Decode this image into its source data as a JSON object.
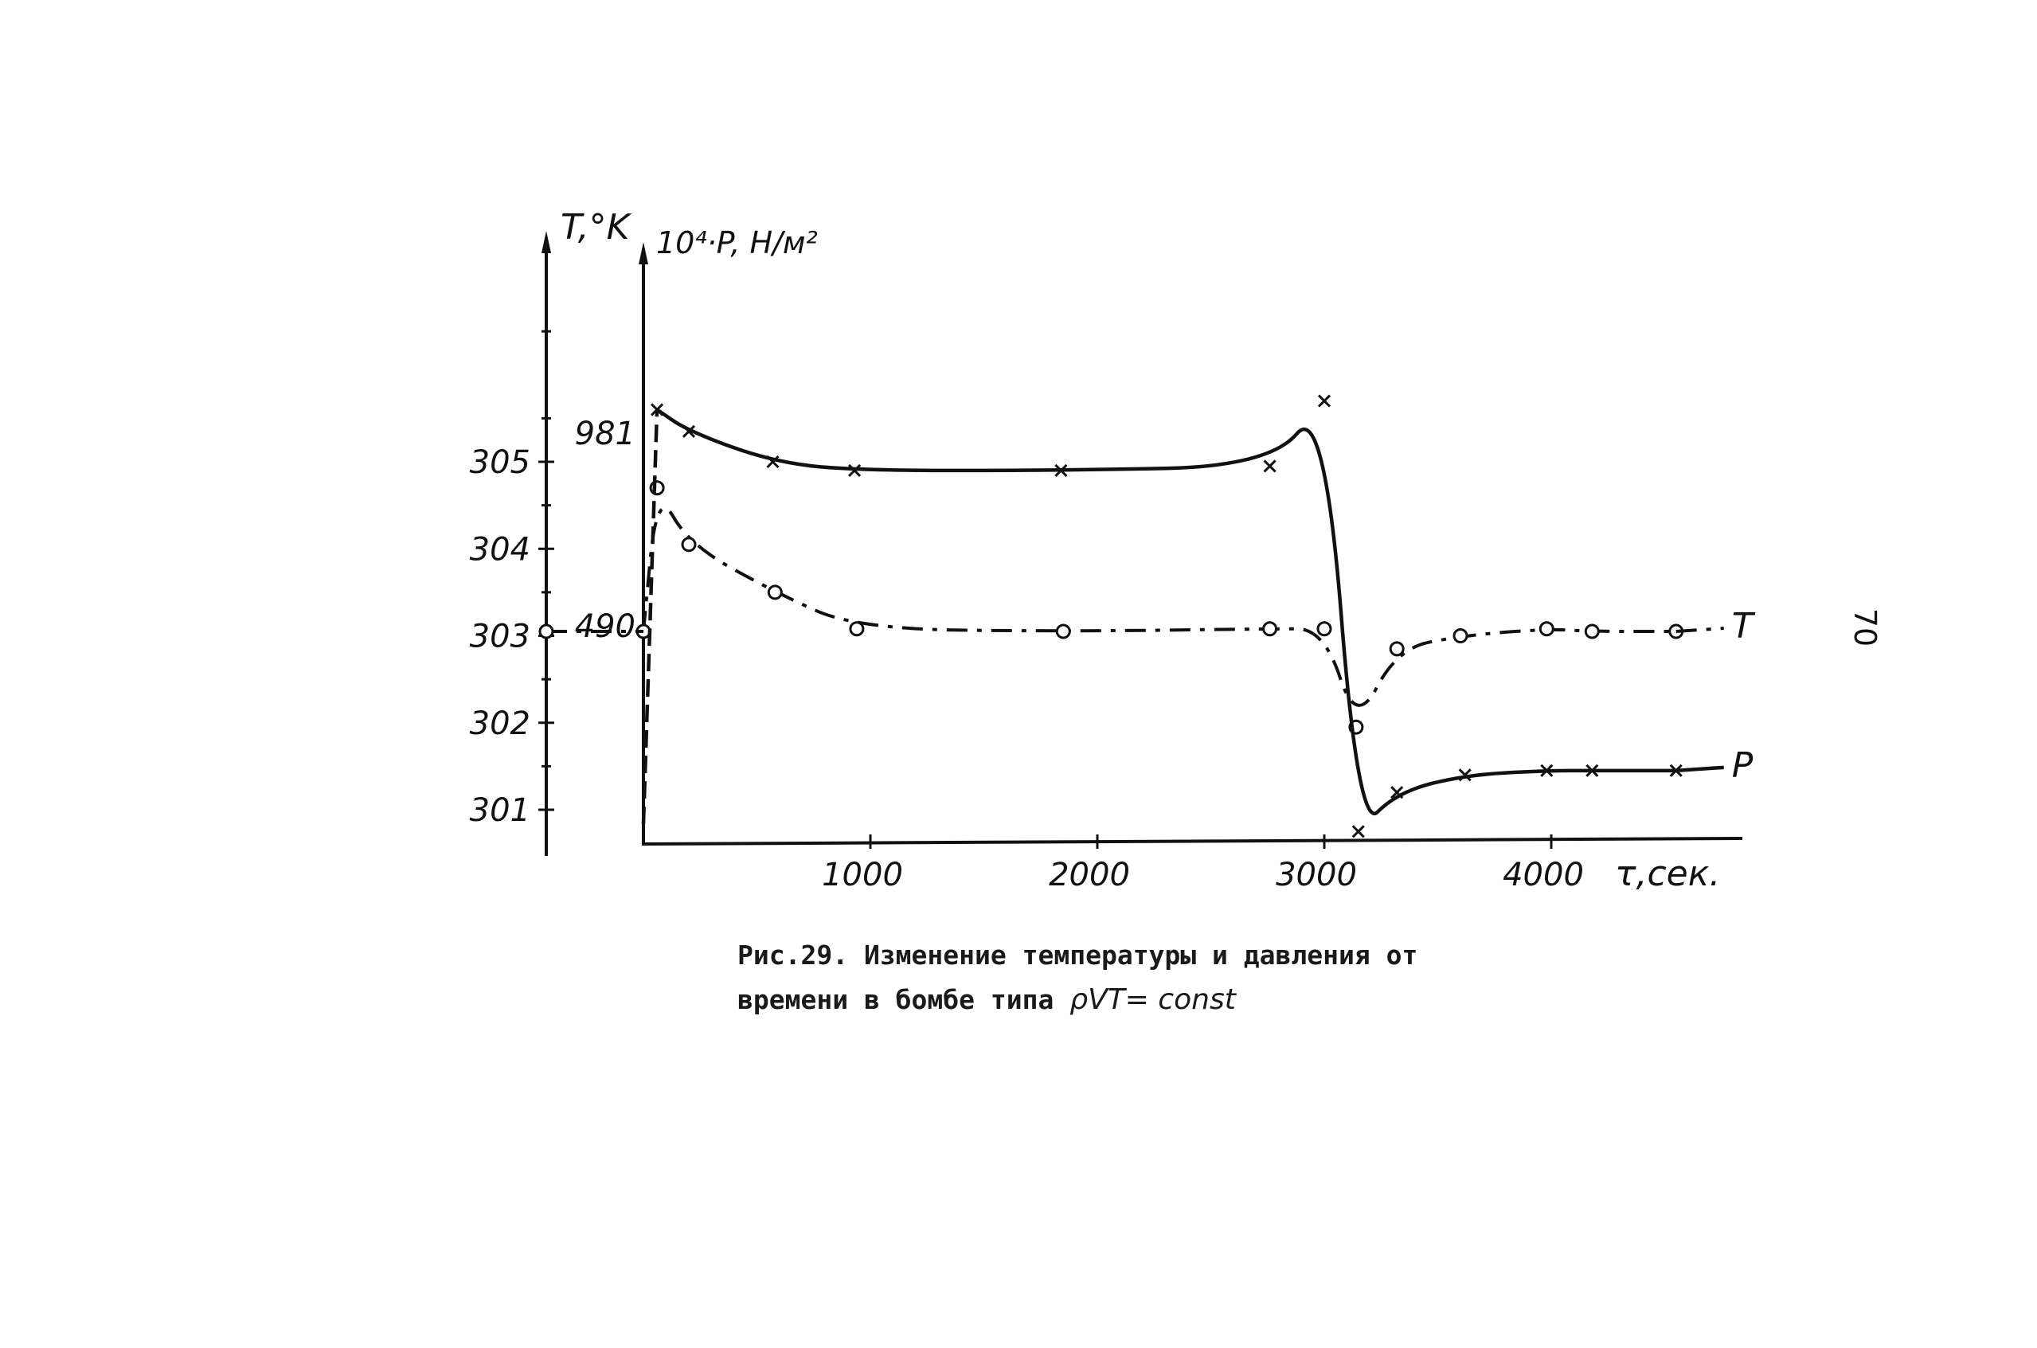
{
  "chart_data": {
    "type": "line",
    "xlabel": "τ,сек.",
    "x_ticks": [
      1000,
      2000,
      3000,
      4000
    ],
    "xlim": [
      0,
      5100
    ],
    "y_left": {
      "label": "T,°K",
      "ticks": [
        301,
        302,
        303,
        304,
        305
      ],
      "ylim": [
        300.5,
        307.8
      ]
    },
    "y_right": {
      "label": "10⁴·P, Н/м²",
      "ticks": [
        490,
        981
      ]
    },
    "series": [
      {
        "name": "T",
        "axis": "left",
        "marker": "o",
        "line": "dash-dot",
        "x": [
          0,
          60,
          200,
          580,
          940,
          1850,
          2760,
          3000,
          3140,
          3320,
          3600,
          3980,
          4180,
          4550
        ],
        "y": [
          303.05,
          304.7,
          304.05,
          303.5,
          303.08,
          303.05,
          303.08,
          303.08,
          301.95,
          302.85,
          303.0,
          303.08,
          303.05,
          303.05
        ]
      },
      {
        "name": "P",
        "axis": "left",
        "marker": "x",
        "line": "solid",
        "x": [
          60,
          200,
          570,
          930,
          1840,
          2760,
          3000,
          3150,
          3320,
          3620,
          3980,
          4180,
          4550
        ],
        "y": [
          305.6,
          305.35,
          305.0,
          304.9,
          304.9,
          304.95,
          305.7,
          300.75,
          301.2,
          301.4,
          301.45,
          301.45,
          301.45
        ]
      }
    ]
  },
  "caption": {
    "line1": "Рис.29. Изменение температуры и давления от",
    "line2_text": "времени в бомбе типа ",
    "line2_formula": "ρVT= const"
  },
  "page_number": "70"
}
